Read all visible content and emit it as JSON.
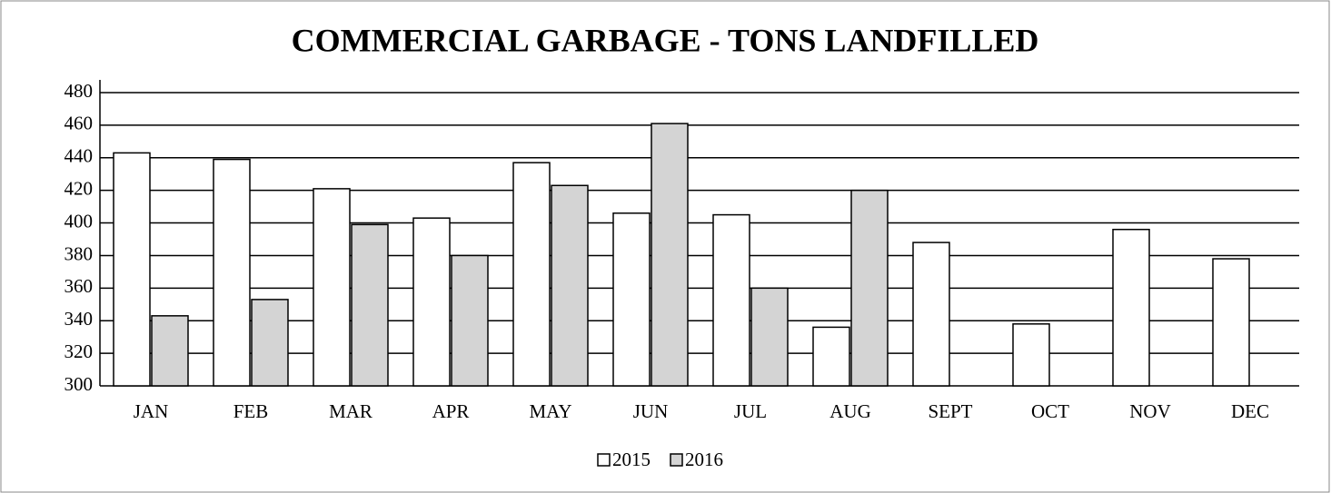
{
  "chart_data": {
    "type": "bar",
    "title": "COMMERCIAL GARBAGE - TONS LANDFILLED",
    "categories": [
      "JAN",
      "FEB",
      "MAR",
      "APR",
      "MAY",
      "JUN",
      "JUL",
      "AUG",
      "SEPT",
      "OCT",
      "NOV",
      "DEC"
    ],
    "series": [
      {
        "name": "2015",
        "color": "#ffffff",
        "values": [
          443,
          439,
          421,
          403,
          437,
          406,
          405,
          336,
          388,
          338,
          396,
          378
        ]
      },
      {
        "name": "2016",
        "color": "#d4d4d4",
        "values": [
          343,
          353,
          399,
          380,
          423,
          461,
          360,
          420,
          null,
          null,
          null,
          null
        ]
      }
    ],
    "ylim": [
      300,
      480
    ],
    "yticks": [
      300,
      320,
      340,
      360,
      380,
      400,
      420,
      440,
      460,
      480
    ],
    "grid": true,
    "legend": "bottom"
  }
}
